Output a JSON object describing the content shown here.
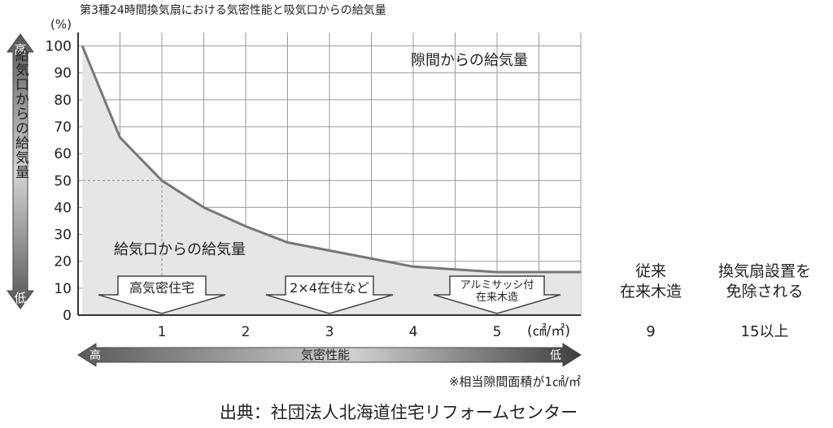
{
  "chart_data": {
    "type": "area",
    "title": "第3種24時間換気扇における気密性能と吸気口からの給気量",
    "y_unit": "(%)",
    "x_unit": "(㎠/㎡)",
    "ylim": [
      0,
      105
    ],
    "xlim": [
      0,
      6
    ],
    "y_ticks": [
      "0",
      "10",
      "20",
      "30",
      "40",
      "50",
      "60",
      "70",
      "80",
      "90",
      "100"
    ],
    "x_ticks": [
      "1",
      "2",
      "3",
      "4",
      "5"
    ],
    "grid": true,
    "series": [
      {
        "name": "給気口からの給気量",
        "x": [
          0.05,
          0.5,
          1.0,
          1.5,
          2.0,
          2.5,
          3.0,
          3.5,
          4.0,
          4.5,
          5.0,
          5.5,
          6.0
        ],
        "y": [
          100,
          66,
          50,
          40,
          33,
          27,
          24,
          21,
          18,
          17,
          16,
          16,
          16
        ]
      }
    ],
    "upper_area_label": "隙間からの給気量",
    "reference_x": 1,
    "reference_y": 50,
    "y_axis_label": "給気口からの給気量",
    "y_high": "高",
    "y_low": "低",
    "x_axis_label": "気密性能",
    "x_high": "高",
    "x_low": "低",
    "callouts": [
      {
        "x": 1,
        "lines": [
          "高気密住宅"
        ]
      },
      {
        "x": 3,
        "lines": [
          "2×4在住など"
        ]
      },
      {
        "x": 5,
        "lines": [
          "アルミサッシ付",
          "在来木造"
        ]
      }
    ],
    "side_table": [
      {
        "header": [
          "従来",
          "在来木造"
        ],
        "value": "9"
      },
      {
        "header": [
          "換気扇設置を",
          "免除される"
        ],
        "value": "15以上"
      }
    ],
    "footnote": "※相当隙間面積が1㎠/㎡",
    "source": "出典：社団法人北海道住宅リフォームセンター",
    "colors": {
      "line": "#777777",
      "area": "#e6e6e6",
      "grid": "#9a9a9a",
      "axis": "#333333",
      "arrow_dark": "#555555",
      "arrow_light": "#f4f4f4"
    }
  }
}
